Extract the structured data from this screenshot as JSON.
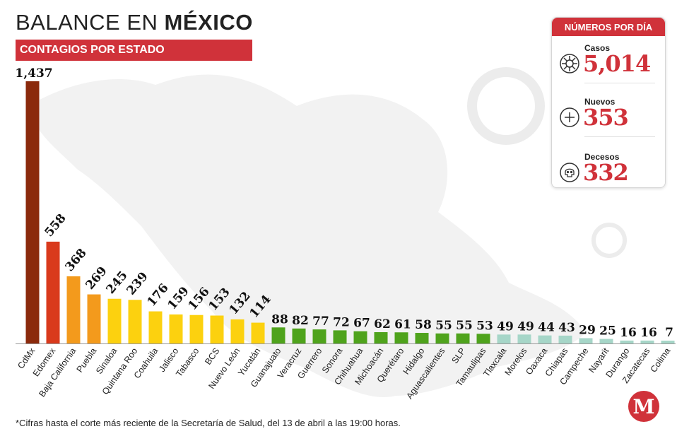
{
  "header": {
    "title_light": "BALANCE EN",
    "title_bold": "MÉXICO",
    "subtitle": "CONTAGIOS POR ESTADO"
  },
  "stats": {
    "heading": "NÚMEROS POR DÍA",
    "items": [
      {
        "label": "Casos",
        "value": "5,014",
        "icon": "virus-icon"
      },
      {
        "label": "Nuevos",
        "value": "353",
        "icon": "plus-circle-icon"
      },
      {
        "label": "Decesos",
        "value": "332",
        "icon": "skull-icon"
      }
    ]
  },
  "footnote": "*Cifras hasta el corte más reciente de la Secretaría de Salud, del 13 de abril a las 19:00 horas.",
  "logo_letter": "M",
  "colors": {
    "brand_red": "#d0323a",
    "bar_darkred": "#8b2a0c",
    "bar_red": "#d93a1c",
    "bar_orange": "#f39a1c",
    "bar_yellow": "#fcd10f",
    "bar_green": "#4fa31c",
    "bar_teal": "#a6d6c8"
  },
  "chart_data": {
    "type": "bar",
    "title": "CONTAGIOS POR ESTADO",
    "xlabel": "",
    "ylabel": "",
    "ylim": [
      0,
      1437
    ],
    "grid": false,
    "categories": [
      "CdMx",
      "Edomex",
      "Baja California",
      "Puebla",
      "Sinaloa",
      "Quintana Roo",
      "Coahuila",
      "Jalisco",
      "Tabasco",
      "BCS",
      "Nuevo León",
      "Yucatán",
      "Guanajuato",
      "Veracruz",
      "Guerrero",
      "Sonora",
      "Chihuahua",
      "Michoacán",
      "Querétaro",
      "Hidalgo",
      "Aguascalientes",
      "SLP",
      "Tamaulipas",
      "Tlaxcala",
      "Morelos",
      "Oaxaca",
      "Chiapas",
      "Campeche",
      "Nayarit",
      "Durango",
      "Zacatecas",
      "Colima"
    ],
    "values": [
      1437,
      558,
      368,
      269,
      245,
      239,
      176,
      159,
      156,
      153,
      132,
      114,
      88,
      82,
      77,
      72,
      67,
      62,
      61,
      58,
      55,
      55,
      53,
      49,
      49,
      44,
      43,
      29,
      25,
      16,
      16,
      7
    ],
    "value_labels": [
      "1,437",
      "558",
      "368",
      "269",
      "245",
      "239",
      "176",
      "159",
      "156",
      "153",
      "132",
      "114",
      "88",
      "82",
      "77",
      "72",
      "67",
      "62",
      "61",
      "58",
      "55",
      "55",
      "53",
      "49",
      "49",
      "44",
      "43",
      "29",
      "25",
      "16",
      "16",
      "7"
    ],
    "bar_color_keys": [
      "bar_darkred",
      "bar_red",
      "bar_orange",
      "bar_orange",
      "bar_yellow",
      "bar_yellow",
      "bar_yellow",
      "bar_yellow",
      "bar_yellow",
      "bar_yellow",
      "bar_yellow",
      "bar_yellow",
      "bar_green",
      "bar_green",
      "bar_green",
      "bar_green",
      "bar_green",
      "bar_green",
      "bar_green",
      "bar_green",
      "bar_green",
      "bar_green",
      "bar_green",
      "bar_teal",
      "bar_teal",
      "bar_teal",
      "bar_teal",
      "bar_teal",
      "bar_teal",
      "bar_teal",
      "bar_teal",
      "bar_teal"
    ]
  }
}
